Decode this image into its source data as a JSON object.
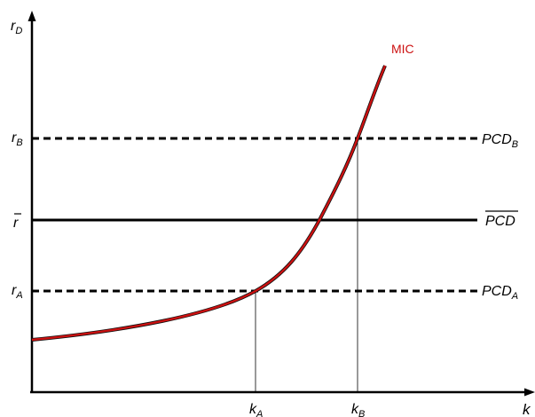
{
  "colors": {
    "curve": "#cc1111",
    "curve_under": "#111111",
    "axis": "#000000",
    "mic_label": "#cc1111"
  },
  "axes": {
    "y_label": {
      "base": "r",
      "sub": "D"
    },
    "x_label": "k"
  },
  "curve": {
    "label": "MIC"
  },
  "horizontal_lines": [
    {
      "id": "pcd-b",
      "level": "r_B",
      "style": "dashed",
      "y_label": {
        "base": "r",
        "sub": "B"
      },
      "right_label": {
        "base": "PCD",
        "sub": "B",
        "overline": false
      }
    },
    {
      "id": "pcd-bar",
      "level": "r_bar",
      "style": "solid",
      "y_label": {
        "base": "r",
        "sub": "",
        "overline": true
      },
      "right_label": {
        "base": "PCD",
        "sub": "",
        "overline": true
      }
    },
    {
      "id": "pcd-a",
      "level": "r_A",
      "style": "dashed",
      "y_label": {
        "base": "r",
        "sub": "A"
      },
      "right_label": {
        "base": "PCD",
        "sub": "A",
        "overline": false
      }
    }
  ],
  "x_ticks": [
    {
      "id": "k-a",
      "base": "k",
      "sub": "A"
    },
    {
      "id": "k-b",
      "base": "k",
      "sub": "B"
    }
  ]
}
